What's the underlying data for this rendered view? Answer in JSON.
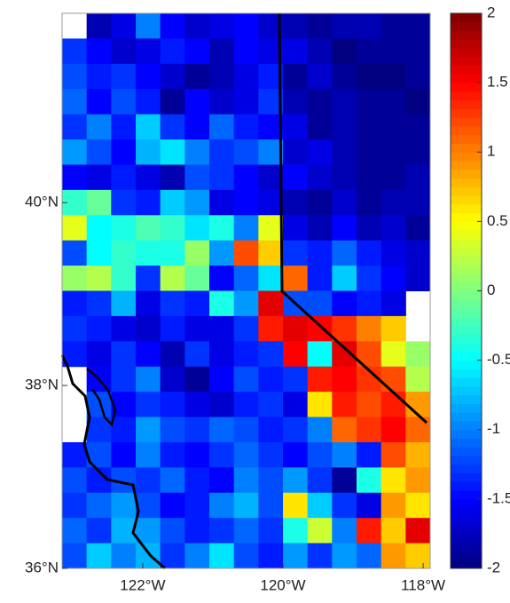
{
  "chart_data": {
    "type": "heatmap",
    "xlim": [
      -123.15,
      -117.9
    ],
    "ylim": [
      36,
      42.07
    ],
    "xticks": [
      {
        "value": -122,
        "label": "122°W"
      },
      {
        "value": -120,
        "label": "120°W"
      },
      {
        "value": -118,
        "label": "118°W"
      }
    ],
    "yticks": [
      {
        "value": 36,
        "label": "36°N"
      },
      {
        "value": 38,
        "label": "38°N"
      },
      {
        "value": 40,
        "label": "40°N"
      }
    ],
    "colormap": "jet",
    "clim": [
      -2,
      2
    ],
    "cticks": [
      -2,
      -1.5,
      -1,
      -0.5,
      0,
      0.5,
      1,
      1.5,
      2
    ],
    "values": [
      [
        null,
        -1.8,
        -1.6,
        -1.0,
        -1.5,
        -1.7,
        -1.6,
        -1.5,
        -1.7,
        -1.8,
        -1.9,
        -1.8,
        -1.8,
        -1.9,
        -1.9
      ],
      [
        -1.3,
        -1.5,
        -1.7,
        -1.6,
        -1.4,
        -1.5,
        -1.8,
        -1.5,
        -1.6,
        -1.6,
        -1.8,
        -2.0,
        -1.9,
        -1.9,
        -1.9
      ],
      [
        -1.2,
        -1.4,
        -1.3,
        -1.5,
        -1.7,
        -1.9,
        -1.8,
        -1.6,
        -1.4,
        -1.9,
        -1.7,
        -1.9,
        -2.0,
        -2.0,
        -1.9
      ],
      [
        -1.1,
        -1.5,
        -1.2,
        -1.4,
        -1.9,
        -1.5,
        -1.7,
        -1.6,
        -1.3,
        -1.8,
        -1.9,
        -1.8,
        -1.9,
        -1.9,
        -2.0
      ],
      [
        -1.3,
        -1.0,
        -1.4,
        -0.7,
        -1.3,
        -1.5,
        -1.1,
        -1.4,
        -1.5,
        -1.6,
        -1.9,
        -1.8,
        -1.9,
        -1.9,
        -1.9
      ],
      [
        -0.9,
        -1.2,
        -1.5,
        -0.8,
        -0.6,
        -1.0,
        -1.3,
        -1.2,
        -1.0,
        -1.7,
        -1.6,
        -1.8,
        -1.9,
        -1.9,
        -1.9
      ],
      [
        -1.5,
        -1.6,
        -1.4,
        -1.6,
        -1.8,
        -1.2,
        -1.3,
        -1.5,
        -1.7,
        -1.5,
        -1.7,
        -1.8,
        -1.9,
        -1.9,
        -1.8
      ],
      [
        -0.3,
        -0.1,
        -1.3,
        -1.4,
        -0.7,
        -0.9,
        -1.6,
        -1.5,
        -1.6,
        -1.8,
        -1.9,
        -1.7,
        -1.9,
        -1.8,
        -1.8
      ],
      [
        0.4,
        -0.5,
        -0.4,
        -0.2,
        -0.3,
        -0.6,
        -0.4,
        -1.0,
        0.4,
        -1.6,
        -1.8,
        -1.5,
        -1.8,
        -1.7,
        -1.9
      ],
      [
        -1.2,
        -0.5,
        -0.3,
        -0.4,
        -0.4,
        0.1,
        -0.9,
        1.2,
        0.7,
        -1.3,
        -1.4,
        -1.1,
        -1.4,
        -1.6,
        -1.7
      ],
      [
        0.1,
        0.2,
        -0.3,
        -1.3,
        0.2,
        -0.1,
        -1.5,
        -1.1,
        -0.6,
        1.1,
        -1.4,
        -0.7,
        -1.3,
        -1.5,
        -1.7
      ],
      [
        -1.4,
        -1.3,
        -0.8,
        -1.6,
        -1.3,
        -1.4,
        -0.4,
        -0.9,
        1.6,
        -1.2,
        -1.2,
        -1.5,
        -1.4,
        -1.6,
        null
      ],
      [
        -1.3,
        -1.4,
        -1.6,
        -1.7,
        -1.4,
        -1.6,
        -1.6,
        -1.3,
        1.4,
        1.6,
        1.5,
        1.3,
        1.0,
        0.7,
        null
      ],
      [
        -1.4,
        -1.6,
        -1.3,
        -1.5,
        -1.8,
        -1.3,
        -1.6,
        -1.4,
        -1.3,
        1.5,
        -0.5,
        1.6,
        1.2,
        0.4,
        0.1
      ],
      [
        null,
        -1.5,
        -1.3,
        -1.0,
        -1.7,
        -1.9,
        -1.5,
        -1.2,
        -1.4,
        -1.3,
        1.4,
        1.5,
        1.3,
        1.2,
        0.2
      ],
      [
        null,
        -1.2,
        -1.5,
        -1.3,
        -1.4,
        -1.6,
        -1.7,
        -1.4,
        -1.3,
        -1.6,
        0.6,
        1.4,
        1.2,
        1.4,
        0.9
      ],
      [
        null,
        -1.3,
        -1.4,
        -0.9,
        -1.2,
        -1.3,
        -1.1,
        -1.2,
        -1.4,
        -1.3,
        -1.0,
        1.1,
        1.3,
        1.5,
        1.1
      ],
      [
        -1.4,
        -1.2,
        -1.5,
        -1.0,
        -1.4,
        -1.5,
        -1.3,
        -1.1,
        -1.3,
        -1.5,
        -1.2,
        -1.0,
        -1.4,
        1.2,
        0.8
      ],
      [
        -1.2,
        -1.4,
        -1.2,
        -1.3,
        -1.1,
        -1.4,
        -1.5,
        -1.0,
        -1.2,
        -0.9,
        -1.3,
        -1.9,
        -0.4,
        0.6,
        0.9
      ],
      [
        -1.3,
        -1.1,
        -0.9,
        -1.2,
        -1.5,
        -1.4,
        -1.0,
        -0.8,
        -1.2,
        0.6,
        -0.7,
        -1.3,
        -1.6,
        0.9,
        0.6
      ],
      [
        -1.1,
        -1.3,
        -0.8,
        -0.9,
        -1.2,
        -1.4,
        -1.3,
        -1.1,
        -1.3,
        -0.4,
        0.3,
        -1.0,
        1.4,
        0.7,
        1.6
      ],
      [
        -1.2,
        -0.7,
        -1.0,
        -0.8,
        -1.3,
        -1.0,
        -0.6,
        -1.2,
        -1.4,
        -0.9,
        -1.3,
        -0.9,
        -1.1,
        0.9,
        0.7
      ]
    ]
  }
}
